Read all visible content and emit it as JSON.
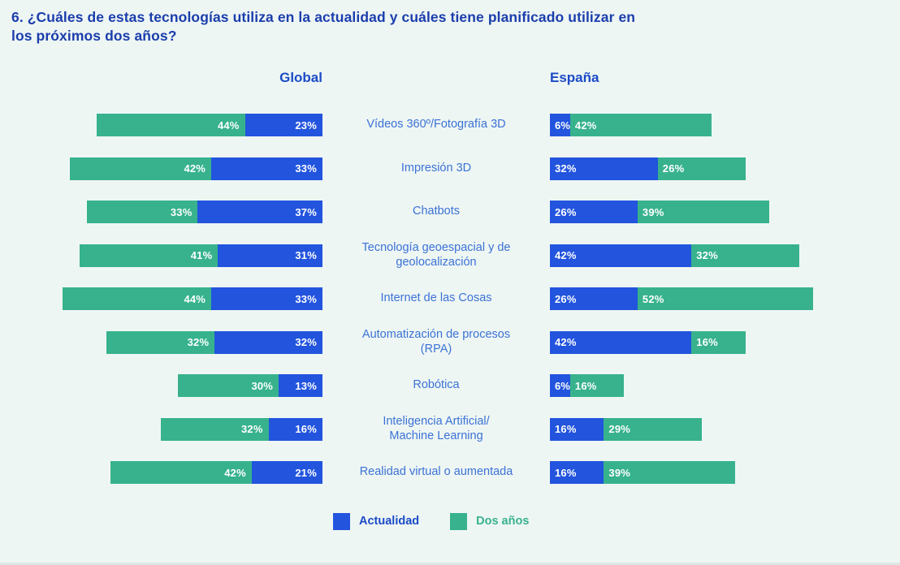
{
  "title": "6. ¿Cuáles de estas tecnologías utiliza en la actualidad y cuáles tiene planificado utilizar en\nlos próximos dos años?",
  "column_headers": {
    "global": "Global",
    "espana": "España"
  },
  "legend": {
    "actualidad": "Actualidad",
    "dos_anos": "Dos años"
  },
  "colors": {
    "actualidad_blue": "#2254DE",
    "dos_anos_green": "#37B28D",
    "background": "#EEF6F4",
    "title_text": "#1B3EAC",
    "header_text": "#1B4BC6",
    "category_label_text": "#3B72D5",
    "bar_value_text": "#FFFFFF"
  },
  "chart_data": {
    "type": "bar",
    "orientation": "horizontal",
    "value_unit": "%",
    "title": "6. ¿Cuáles de estas tecnologías utiliza en la actualidad y cuáles tiene planificado utilizar en los próximos dos años?",
    "legend_position": "bottom",
    "legend_entries": [
      "Actualidad",
      "Dos años"
    ],
    "categories": [
      "Vídeos 360º/Fotografía 3D",
      "Impresión 3D",
      "Chatbots",
      "Tecnología geoespacial y de\ngeolocalización",
      "Internet de las Cosas",
      "Automatización de procesos\n(RPA)",
      "Robótica",
      "Inteligencia Artificial/\nMachine Learning",
      "Realidad virtual o aumentada"
    ],
    "groups": [
      {
        "name": "Global",
        "bar_direction": "right-to-left",
        "segment_order": [
          "Dos años",
          "Actualidad"
        ],
        "series": [
          {
            "name": "Actualidad",
            "values": [
              23,
              33,
              37,
              31,
              33,
              32,
              13,
              16,
              21
            ]
          },
          {
            "name": "Dos años",
            "values": [
              44,
              42,
              33,
              41,
              44,
              32,
              30,
              32,
              42
            ]
          }
        ]
      },
      {
        "name": "España",
        "bar_direction": "left-to-right",
        "segment_order": [
          "Actualidad",
          "Dos años"
        ],
        "series": [
          {
            "name": "Actualidad",
            "values": [
              6,
              32,
              26,
              42,
              26,
              42,
              6,
              16,
              16
            ]
          },
          {
            "name": "Dos años",
            "values": [
              42,
              26,
              39,
              32,
              52,
              16,
              16,
              29,
              39
            ]
          }
        ]
      }
    ]
  }
}
